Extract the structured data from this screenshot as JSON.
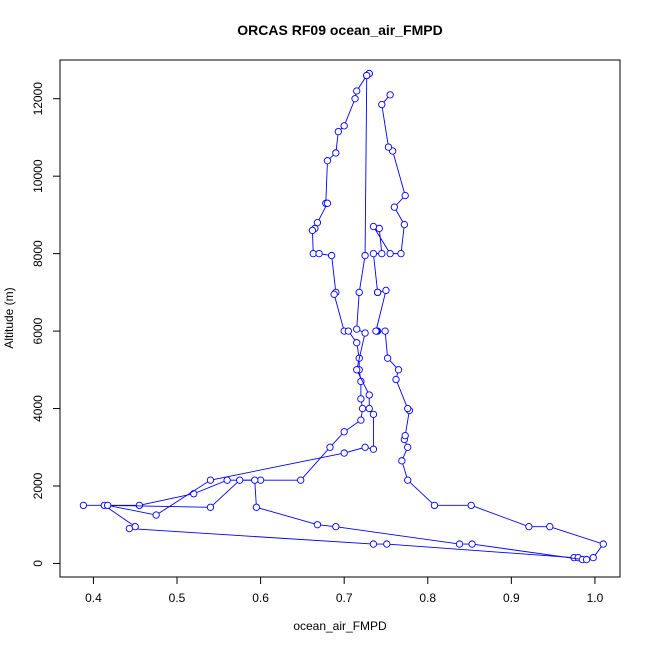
{
  "chart_data": {
    "type": "line",
    "title": "ORCAS RF09 ocean_air_FMPD",
    "xlabel": "ocean_air_FMPD",
    "ylabel": "Altitude (m)",
    "xlim": [
      0.36,
      1.03
    ],
    "ylim": [
      -350,
      13000
    ],
    "xticks": [
      "0.4",
      "0.5",
      "0.6",
      "0.7",
      "0.8",
      "0.9",
      "1.0"
    ],
    "yticks": [
      "0",
      "2000",
      "4000",
      "6000",
      "8000",
      "10000",
      "12000"
    ],
    "series_color": "#0000ff",
    "grid": false,
    "markers": "open-circle",
    "series": [
      {
        "values": [
          [
            0.73,
            12650
          ],
          [
            0.727,
            12600
          ],
          [
            0.715,
            12200
          ],
          [
            0.713,
            12000
          ],
          [
            0.7,
            11300
          ],
          [
            0.693,
            11150
          ],
          [
            0.69,
            10600
          ],
          [
            0.68,
            10400
          ],
          [
            0.678,
            9300
          ],
          [
            0.68,
            9300
          ],
          [
            0.668,
            8800
          ],
          [
            0.665,
            8650
          ],
          [
            0.662,
            8600
          ],
          [
            0.663,
            8000
          ],
          [
            0.67,
            8000
          ],
          [
            0.685,
            7950
          ],
          [
            0.69,
            7000
          ],
          [
            0.688,
            6950
          ],
          [
            0.7,
            6000
          ],
          [
            0.705,
            6000
          ],
          [
            0.715,
            5700
          ],
          [
            0.718,
            5300
          ],
          [
            0.718,
            5000
          ],
          [
            0.72,
            4700
          ],
          [
            0.72,
            4250
          ],
          [
            0.722,
            4000
          ],
          [
            0.72,
            3700
          ],
          [
            0.7,
            3400
          ],
          [
            0.683,
            3000
          ],
          [
            0.648,
            2150
          ],
          [
            0.6,
            2150
          ],
          [
            0.56,
            2150
          ],
          [
            0.52,
            1800
          ],
          [
            0.455,
            1500
          ],
          [
            0.388,
            1500
          ],
          [
            0.413,
            1500
          ],
          [
            0.45,
            950
          ],
          [
            0.443,
            900
          ],
          [
            0.735,
            500
          ],
          [
            0.751,
            500
          ],
          [
            0.975,
            150
          ],
          [
            0.98,
            150
          ],
          [
            0.998,
            150
          ],
          [
            1.01,
            500
          ],
          [
            0.946,
            950
          ],
          [
            0.921,
            950
          ],
          [
            0.852,
            1500
          ],
          [
            0.808,
            1500
          ],
          [
            0.776,
            2150
          ],
          [
            0.769,
            2650
          ],
          [
            0.776,
            3000
          ],
          [
            0.772,
            3200
          ],
          [
            0.773,
            3300
          ],
          [
            0.778,
            3950
          ],
          [
            0.776,
            4000
          ],
          [
            0.762,
            4750
          ],
          [
            0.765,
            5000
          ],
          [
            0.752,
            5300
          ],
          [
            0.749,
            6000
          ],
          [
            0.74,
            6000
          ],
          [
            0.739,
            6000
          ],
          [
            0.738,
            6000
          ],
          [
            0.75,
            7050
          ],
          [
            0.74,
            7000
          ],
          [
            0.74,
            7000
          ],
          [
            0.735,
            8000
          ],
          [
            0.745,
            8000
          ],
          [
            0.742,
            8650
          ],
          [
            0.735,
            8700
          ],
          [
            0.755,
            8000
          ],
          [
            0.768,
            8000
          ],
          [
            0.772,
            8750
          ],
          [
            0.76,
            9200
          ],
          [
            0.773,
            9500
          ],
          [
            0.758,
            10650
          ],
          [
            0.753,
            10750
          ],
          [
            0.745,
            11850
          ],
          [
            0.755,
            12100
          ]
        ]
      },
      {
        "values": [
          [
            0.73,
            12650
          ],
          [
            0.727,
            12600
          ],
          [
            0.725,
            7950
          ],
          [
            0.718,
            7000
          ],
          [
            0.715,
            6050
          ],
          [
            0.725,
            5950
          ],
          [
            0.715,
            5000
          ],
          [
            0.73,
            4350
          ],
          [
            0.73,
            4000
          ],
          [
            0.735,
            3850
          ],
          [
            0.735,
            2950
          ],
          [
            0.725,
            3000
          ],
          [
            0.7,
            2850
          ],
          [
            0.54,
            2150
          ],
          [
            0.475,
            1250
          ],
          [
            0.417,
            1500
          ],
          [
            0.54,
            1450
          ],
          [
            0.575,
            2150
          ],
          [
            0.593,
            2150
          ],
          [
            0.595,
            1450
          ],
          [
            0.668,
            1000
          ],
          [
            0.69,
            950
          ],
          [
            0.838,
            500
          ],
          [
            0.853,
            500
          ],
          [
            0.985,
            100
          ],
          [
            0.99,
            100
          ]
        ]
      }
    ]
  }
}
